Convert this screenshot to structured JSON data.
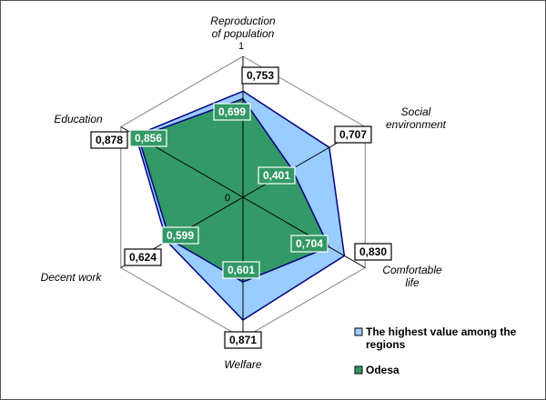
{
  "chart_data": {
    "type": "radar",
    "categories": [
      "Reproduction of population",
      "Social environment",
      "Comfortable life",
      "Welfare",
      "Decent work",
      "Education"
    ],
    "axis_labels": [
      [
        "Reproduction",
        "of population"
      ],
      [
        "Social",
        "environment"
      ],
      [
        "Comfortable",
        "life"
      ],
      [
        "Welfare"
      ],
      [
        "Decent work"
      ],
      [
        "Education"
      ]
    ],
    "scale": {
      "min": 0,
      "max": 1,
      "min_label": "0",
      "max_label": "1"
    },
    "series": [
      {
        "name": "The highest value among the regions",
        "values": [
          0.753,
          0.707,
          0.83,
          0.871,
          0.624,
          0.878
        ],
        "labels": [
          "0,753",
          "0,707",
          "0,830",
          "0,871",
          "0,624",
          "0,878"
        ],
        "color": "#99ccff"
      },
      {
        "name": "Odesa",
        "values": [
          0.699,
          0.401,
          0.704,
          0.601,
          0.599,
          0.856
        ],
        "labels": [
          "0,699",
          "0,401",
          "0,704",
          "0,601",
          "0,599",
          "0,856"
        ],
        "color": "#339966"
      }
    ],
    "legend_position": "bottom-right",
    "grid": true
  }
}
